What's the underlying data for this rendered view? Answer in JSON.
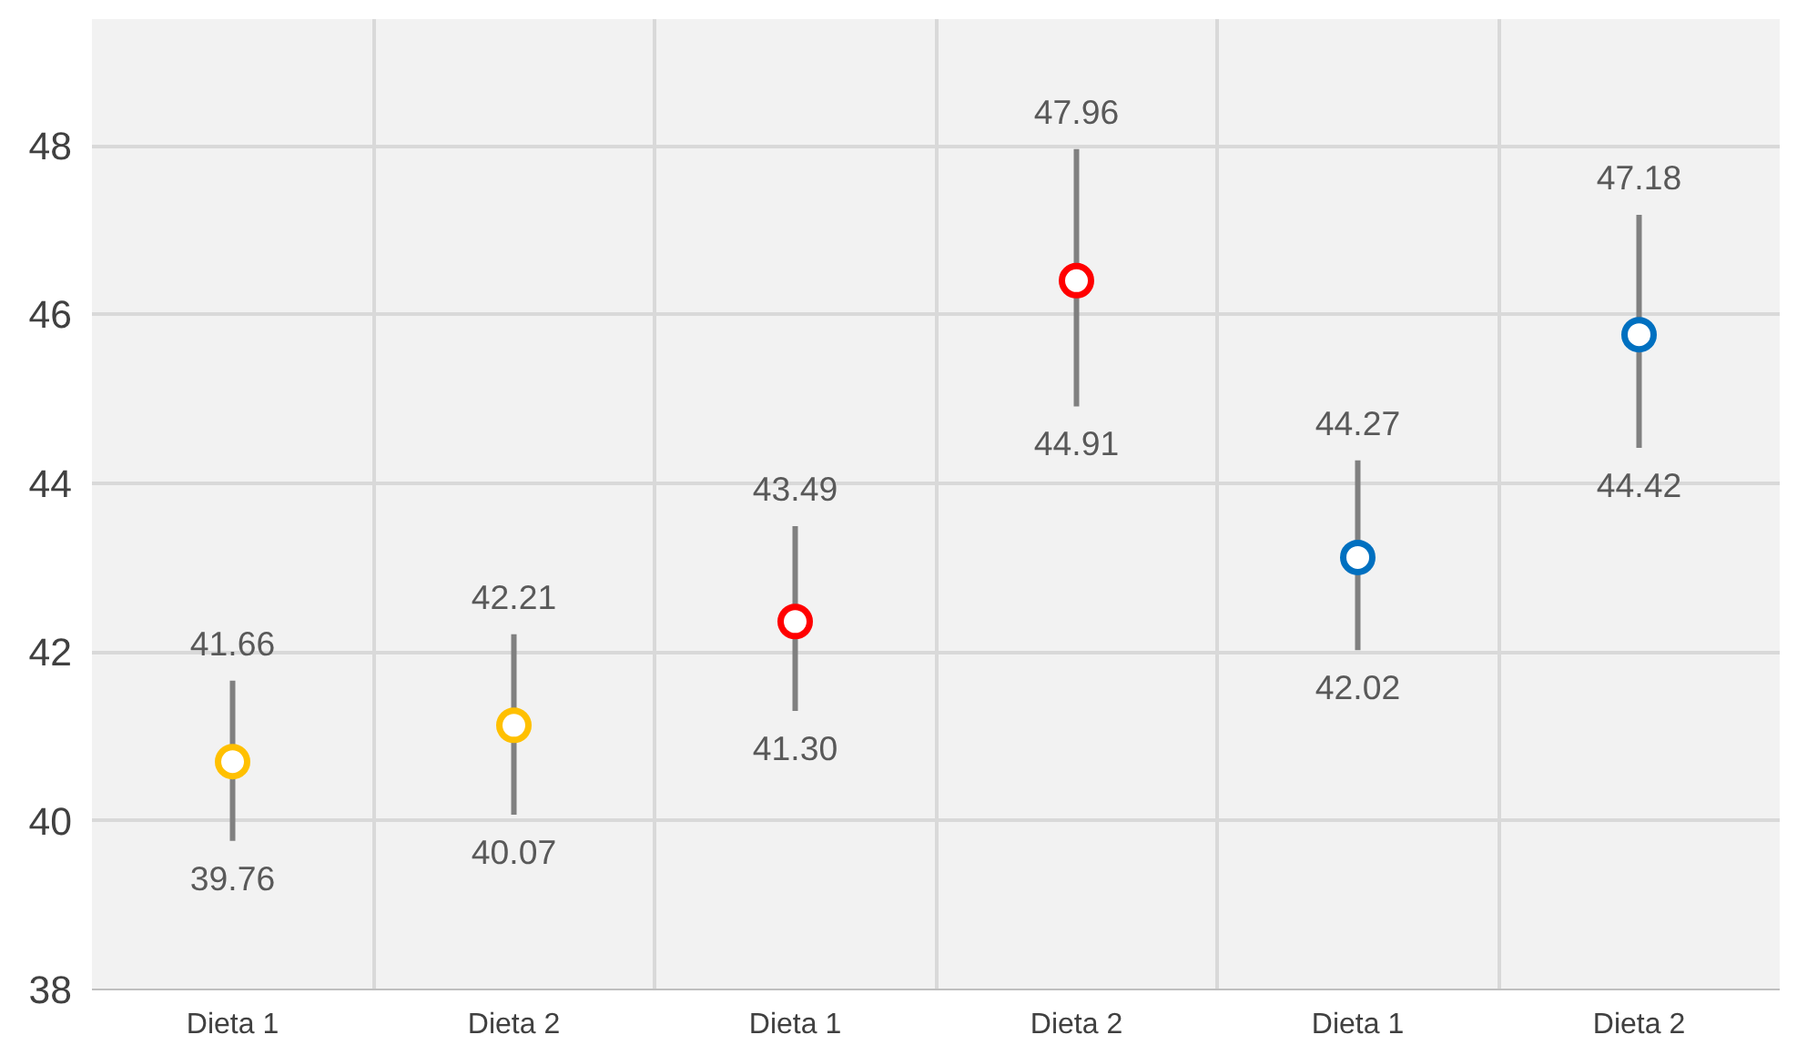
{
  "chart_data": {
    "type": "scatter",
    "categories": [
      "Dieta 1",
      "Dieta 2",
      "Dieta 1",
      "Dieta 2",
      "Dieta 1",
      "Dieta 2"
    ],
    "values": [
      40.7,
      41.13,
      42.36,
      46.4,
      43.12,
      45.76
    ],
    "colors": [
      "#ffc000",
      "#ffc000",
      "#ff0000",
      "#ff0000",
      "#0070c0",
      "#0070c0"
    ],
    "errors": [
      [
        39.76,
        41.66
      ],
      [
        40.07,
        42.21
      ],
      [
        41.3,
        43.49
      ],
      [
        44.91,
        47.96
      ],
      [
        42.02,
        44.27
      ],
      [
        44.42,
        47.18
      ]
    ],
    "annotations": [
      "41.66",
      "39.76",
      "42.21",
      "40.07",
      "43.49",
      "41.30",
      "47.96",
      "44.91",
      "44.27",
      "42.02",
      "47.18",
      "44.42"
    ],
    "ylim": [
      38,
      49.5
    ],
    "yticks": [
      38,
      40,
      42,
      44,
      46,
      48
    ],
    "grid": true,
    "marker": "circle"
  }
}
